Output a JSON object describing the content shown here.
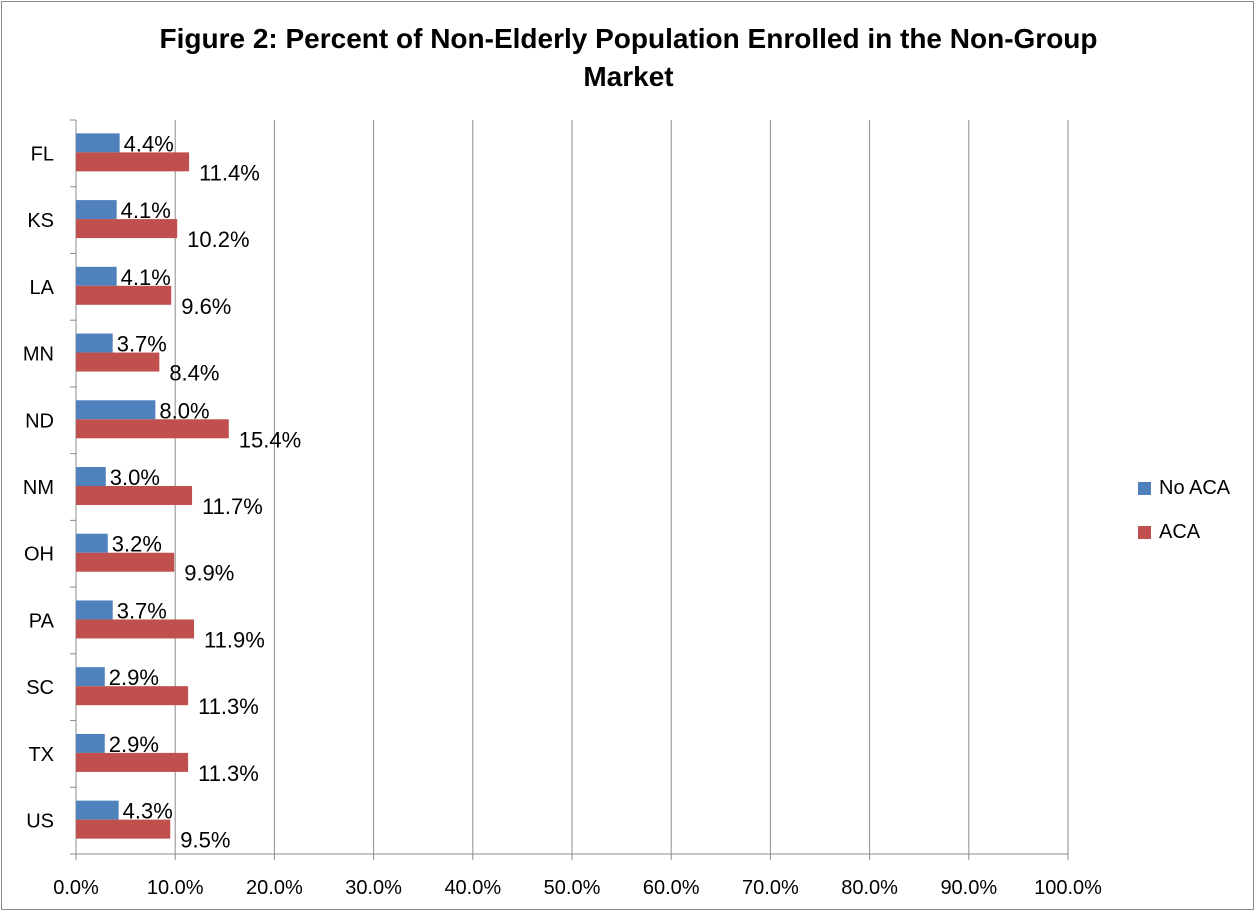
{
  "chart_data": {
    "type": "bar",
    "orientation": "horizontal",
    "title_line1": "Figure 2: Percent of Non-Elderly Population Enrolled in the Non-Group",
    "title_line2": "Market",
    "categories": [
      "FL",
      "KS",
      "LA",
      "MN",
      "ND",
      "NM",
      "OH",
      "PA",
      "SC",
      "TX",
      "US"
    ],
    "series": [
      {
        "name": "No ACA",
        "color": "#4F81BD",
        "values": [
          4.4,
          4.1,
          4.1,
          3.7,
          8.0,
          3.0,
          3.2,
          3.7,
          2.9,
          2.9,
          4.3
        ],
        "labels": [
          "4.4%",
          "4.1%",
          "4.1%",
          "3.7%",
          "8.0%",
          "3.0%",
          "3.2%",
          "3.7%",
          "2.9%",
          "2.9%",
          "4.3%"
        ]
      },
      {
        "name": "ACA",
        "color": "#C0504D",
        "values": [
          11.4,
          10.2,
          9.6,
          8.4,
          15.4,
          11.7,
          9.9,
          11.9,
          11.3,
          11.3,
          9.5
        ],
        "labels": [
          "11.4%",
          "10.2%",
          "9.6%",
          "8.4%",
          "15.4%",
          "11.7%",
          "9.9%",
          "11.9%",
          "11.3%",
          "11.3%",
          "9.5%"
        ]
      }
    ],
    "xlim": [
      0,
      100
    ],
    "x_ticks": [
      "0.0%",
      "10.0%",
      "20.0%",
      "30.0%",
      "40.0%",
      "50.0%",
      "60.0%",
      "70.0%",
      "80.0%",
      "90.0%",
      "100.0%"
    ],
    "grid": true,
    "legend_position": "right"
  }
}
